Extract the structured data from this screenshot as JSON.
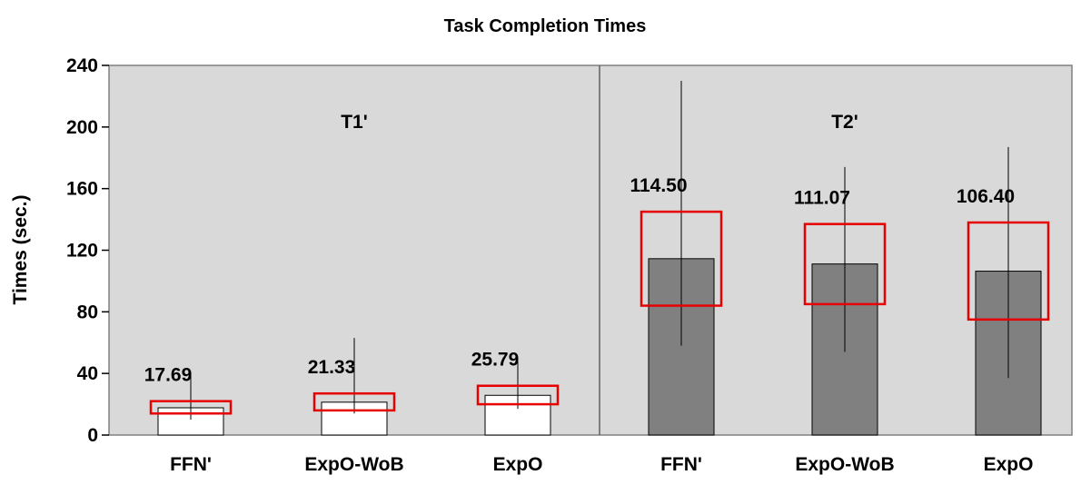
{
  "chart_data": {
    "type": "bar",
    "title": "Task Completion Times",
    "ylabel": "Times (sec.)",
    "xlabel": "",
    "ylim": [
      0,
      240
    ],
    "yticks": [
      0,
      40,
      80,
      120,
      160,
      200,
      240
    ],
    "grid": false,
    "background_color": "#d9d9d9",
    "groups": [
      {
        "label": "T1'",
        "bar_color": "#ffffff",
        "bars": [
          {
            "category": "FFN'",
            "value": 17.69,
            "value_label": "17.69",
            "err_low": 10,
            "err_high": 41,
            "box_low": 14,
            "box_high": 22
          },
          {
            "category": "ExpO-WoB",
            "value": 21.33,
            "value_label": "21.33",
            "err_low": 14,
            "err_high": 63,
            "box_low": 16,
            "box_high": 27
          },
          {
            "category": "ExpO",
            "value": 25.79,
            "value_label": "25.79",
            "err_low": 17,
            "err_high": 48,
            "box_low": 20,
            "box_high": 32
          }
        ]
      },
      {
        "label": "T2'",
        "bar_color": "#808080",
        "bars": [
          {
            "category": "FFN'",
            "value": 114.5,
            "value_label": "114.50",
            "err_low": 58,
            "err_high": 230,
            "box_low": 84,
            "box_high": 145
          },
          {
            "category": "ExpO-WoB",
            "value": 111.07,
            "value_label": "111.07",
            "err_low": 54,
            "err_high": 174,
            "box_low": 85,
            "box_high": 137
          },
          {
            "category": "ExpO",
            "value": 106.4,
            "value_label": "106.40",
            "err_low": 37,
            "err_high": 187,
            "box_low": 75,
            "box_high": 138
          }
        ]
      }
    ],
    "highlight_color": "#e60000"
  }
}
